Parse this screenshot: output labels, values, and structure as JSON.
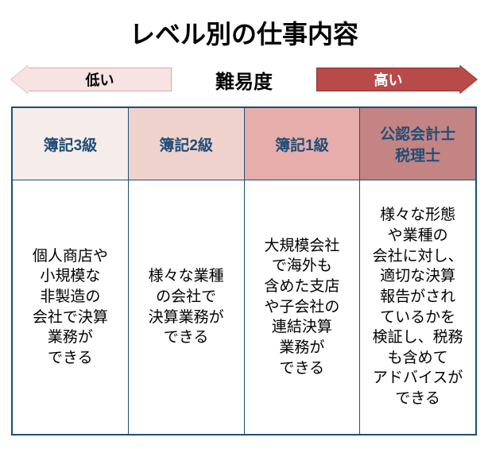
{
  "title": "レベル別の仕事内容",
  "difficulty": {
    "center_label": "難易度",
    "low_label": "低い",
    "high_label": "高い",
    "low_arrow_fill": "#f8e3e3",
    "low_arrow_border": "#d9a8a8",
    "low_arrow_text": "#000000",
    "high_arrow_fill": "#b84a4a",
    "high_arrow_border": "#8a2a2a",
    "high_arrow_text": "#ffffff"
  },
  "table": {
    "border_color": "#1f4e79",
    "header_text_color": "#1f4e79",
    "columns": [
      {
        "header": "簿記3級",
        "header_bg": "#f6ecea",
        "body": "個人商店や\n小規模な\n非製造の\n会社で決算\n業務が\nできる"
      },
      {
        "header": "簿記2級",
        "header_bg": "#f0d2cc",
        "body": "様々な業種\nの会社で\n決算業務が\nできる"
      },
      {
        "header": "簿記1級",
        "header_bg": "#e6adaa",
        "body": "大規模会社\nで海外も\n含めた支店\nや子会社の\n連結決算\n業務が\nできる"
      },
      {
        "header": "公認会計士\n税理士",
        "header_bg": "#c48484",
        "body": "様々な形態\nや業種の\n会社に対し、\n適切な決算\n報告がされ\nているかを\n検証し、税務\nも含めて\nアドバイスが\nできる"
      }
    ]
  }
}
